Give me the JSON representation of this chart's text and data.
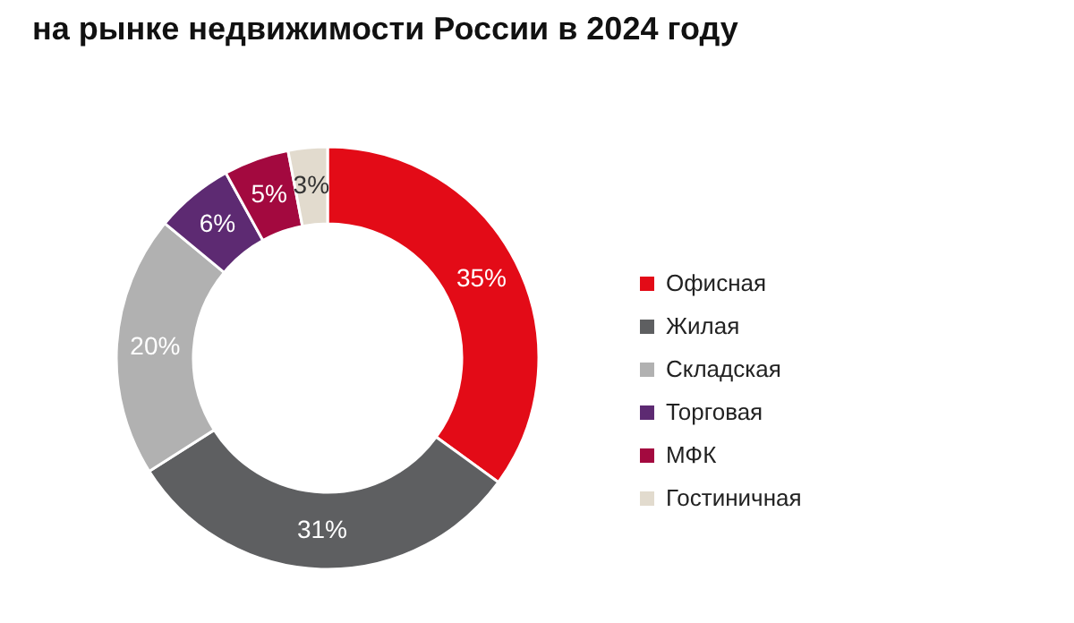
{
  "chart_data": {
    "type": "donut",
    "title": "на рынке недвижимости России в 2024 году",
    "categories": [
      "Офисная",
      "Жилая",
      "Складская",
      "Торговая",
      "МФК",
      "Гостиничная"
    ],
    "values": [
      35,
      31,
      20,
      6,
      5,
      3
    ],
    "colors": [
      "#e30b17",
      "#5e5f61",
      "#b1b1b1",
      "#5d2a72",
      "#a3093f",
      "#e2dbce"
    ],
    "value_labels": [
      "35%",
      "31%",
      "20%",
      "6%",
      "5%",
      "3%"
    ],
    "legend": "right"
  }
}
